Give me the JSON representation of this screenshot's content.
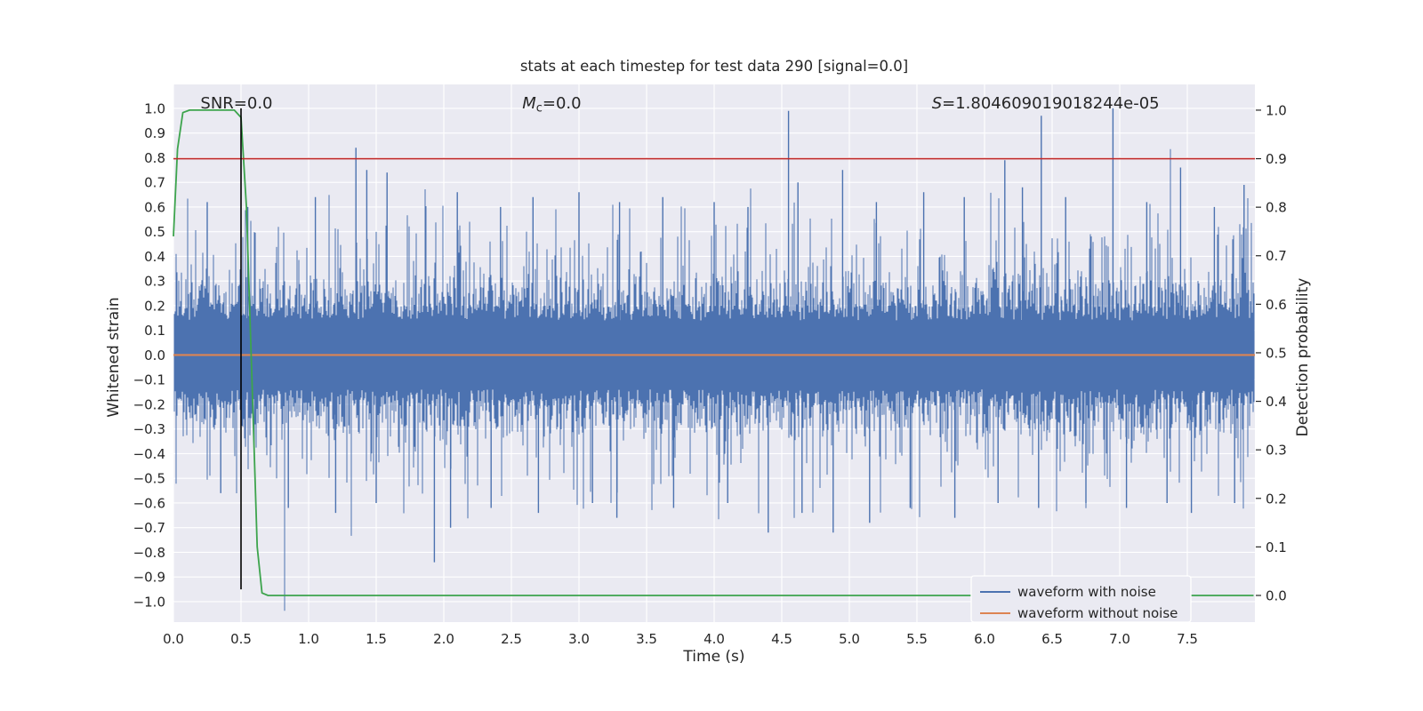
{
  "chart_data": {
    "type": "line",
    "title": "stats at each timestep for test data 290 [signal=0.0]",
    "xlabel": "Time (s)",
    "ylabel_left": "Whitened strain",
    "ylabel_right": "Detection probability",
    "xlim": [
      0,
      8
    ],
    "ylim_left": [
      -1.083,
      1.097
    ],
    "ylim_right": [
      -0.055,
      1.053
    ],
    "x_ticks": [
      0.0,
      0.5,
      1.0,
      1.5,
      2.0,
      2.5,
      3.0,
      3.5,
      4.0,
      4.5,
      5.0,
      5.5,
      6.0,
      6.5,
      7.0,
      7.5
    ],
    "y_ticks_left": [
      1.0,
      0.9,
      0.8,
      0.7,
      0.6,
      0.5,
      0.4,
      0.3,
      0.2,
      0.1,
      0.0,
      -0.1,
      -0.2,
      -0.3,
      -0.4,
      -0.5,
      -0.6,
      -0.7,
      -0.8,
      -0.9,
      -1.0
    ],
    "y_ticks_right": [
      1.0,
      0.9,
      0.8,
      0.7,
      0.6,
      0.5,
      0.4,
      0.3,
      0.2,
      0.1,
      0.0
    ],
    "grid": true,
    "colors": {
      "axes_background": "#eaeaf2",
      "grid": "#ffffff",
      "text": "#262626",
      "noise_blue": "#4c72b0",
      "clean_orange": "#dd8452",
      "probability_green": "#3da44d",
      "threshold_red": "#bf2a2a",
      "marker_black": "#000000"
    },
    "annotations": [
      {
        "x": 0.2,
        "y": 1.0,
        "parts": [
          {
            "text": "SNR=0.0"
          }
        ]
      },
      {
        "x": 2.58,
        "y": 1.0,
        "parts": [
          {
            "text": "M",
            "italic": true
          },
          {
            "text": "c",
            "sub": true
          },
          {
            "text": "=0.0"
          }
        ]
      },
      {
        "x": 5.61,
        "y": 1.0,
        "parts": [
          {
            "text": "S",
            "italic": true
          },
          {
            "text": "=1.804609019018244e-05"
          }
        ]
      }
    ],
    "series": [
      {
        "name": "waveform with noise",
        "color": "#4c72b0",
        "axis": "left",
        "kind": "noise",
        "seed": 290,
        "base_amplitude": 0.14,
        "spikes": [
          [
            0.25,
            0.62
          ],
          [
            0.55,
            0.6
          ],
          [
            1.05,
            0.64
          ],
          [
            1.35,
            0.84
          ],
          [
            1.43,
            0.75
          ],
          [
            1.58,
            0.74
          ],
          [
            2.1,
            0.66
          ],
          [
            2.42,
            0.6
          ],
          [
            2.66,
            0.64
          ],
          [
            3.0,
            0.66
          ],
          [
            3.3,
            0.62
          ],
          [
            3.62,
            0.64
          ],
          [
            4.0,
            0.62
          ],
          [
            4.25,
            0.6
          ],
          [
            4.55,
            0.99
          ],
          [
            4.62,
            0.7
          ],
          [
            4.95,
            0.75
          ],
          [
            5.2,
            0.62
          ],
          [
            5.55,
            0.66
          ],
          [
            5.85,
            0.64
          ],
          [
            6.15,
            0.79
          ],
          [
            6.28,
            0.68
          ],
          [
            6.42,
            0.97
          ],
          [
            6.6,
            0.64
          ],
          [
            6.95,
            1.0
          ],
          [
            7.2,
            0.62
          ],
          [
            7.45,
            0.76
          ],
          [
            7.7,
            0.6
          ],
          [
            7.92,
            0.69
          ],
          [
            0.35,
            -0.56
          ],
          [
            0.85,
            -0.62
          ],
          [
            1.2,
            -0.64
          ],
          [
            1.5,
            -0.6
          ],
          [
            1.93,
            -0.84
          ],
          [
            2.05,
            -0.7
          ],
          [
            2.35,
            -0.62
          ],
          [
            2.7,
            -0.64
          ],
          [
            3.1,
            -0.6
          ],
          [
            3.28,
            -0.66
          ],
          [
            3.7,
            -0.62
          ],
          [
            4.1,
            -0.6
          ],
          [
            4.4,
            -0.72
          ],
          [
            4.65,
            -0.64
          ],
          [
            4.88,
            -0.72
          ],
          [
            5.15,
            -0.68
          ],
          [
            5.45,
            -0.62
          ],
          [
            5.78,
            -0.66
          ],
          [
            6.1,
            -0.6
          ],
          [
            6.4,
            -0.62
          ],
          [
            6.75,
            -0.6
          ],
          [
            7.05,
            -0.62
          ],
          [
            7.35,
            -0.6
          ],
          [
            7.53,
            -0.64
          ],
          [
            7.85,
            -0.6
          ]
        ]
      },
      {
        "name": "waveform without noise",
        "color": "#dd8452",
        "axis": "left",
        "kind": "hline",
        "value": 0.0
      },
      {
        "name": "detection probability",
        "color": "#3da44d",
        "axis": "right",
        "kind": "line",
        "points": [
          [
            0,
            0.74
          ],
          [
            0.03,
            0.92
          ],
          [
            0.07,
            0.995
          ],
          [
            0.12,
            1.0
          ],
          [
            0.45,
            1.0
          ],
          [
            0.5,
            0.985
          ],
          [
            0.54,
            0.8
          ],
          [
            0.58,
            0.45
          ],
          [
            0.62,
            0.1
          ],
          [
            0.655,
            0.005
          ],
          [
            0.7,
            0.0
          ],
          [
            7.99,
            0.0
          ]
        ]
      },
      {
        "name": "detection threshold",
        "color": "#bf2a2a",
        "axis": "right",
        "kind": "hline",
        "value": 0.9
      },
      {
        "name": "signal time marker",
        "color": "#000000",
        "axis": "left",
        "kind": "vline",
        "x": 0.5,
        "y_from": 1.0,
        "y_to": -0.95
      }
    ],
    "legend": {
      "position": "lower right",
      "entries": [
        {
          "label": "waveform with noise",
          "color": "#4c72b0"
        },
        {
          "label": "waveform without noise",
          "color": "#dd8452"
        }
      ]
    }
  }
}
